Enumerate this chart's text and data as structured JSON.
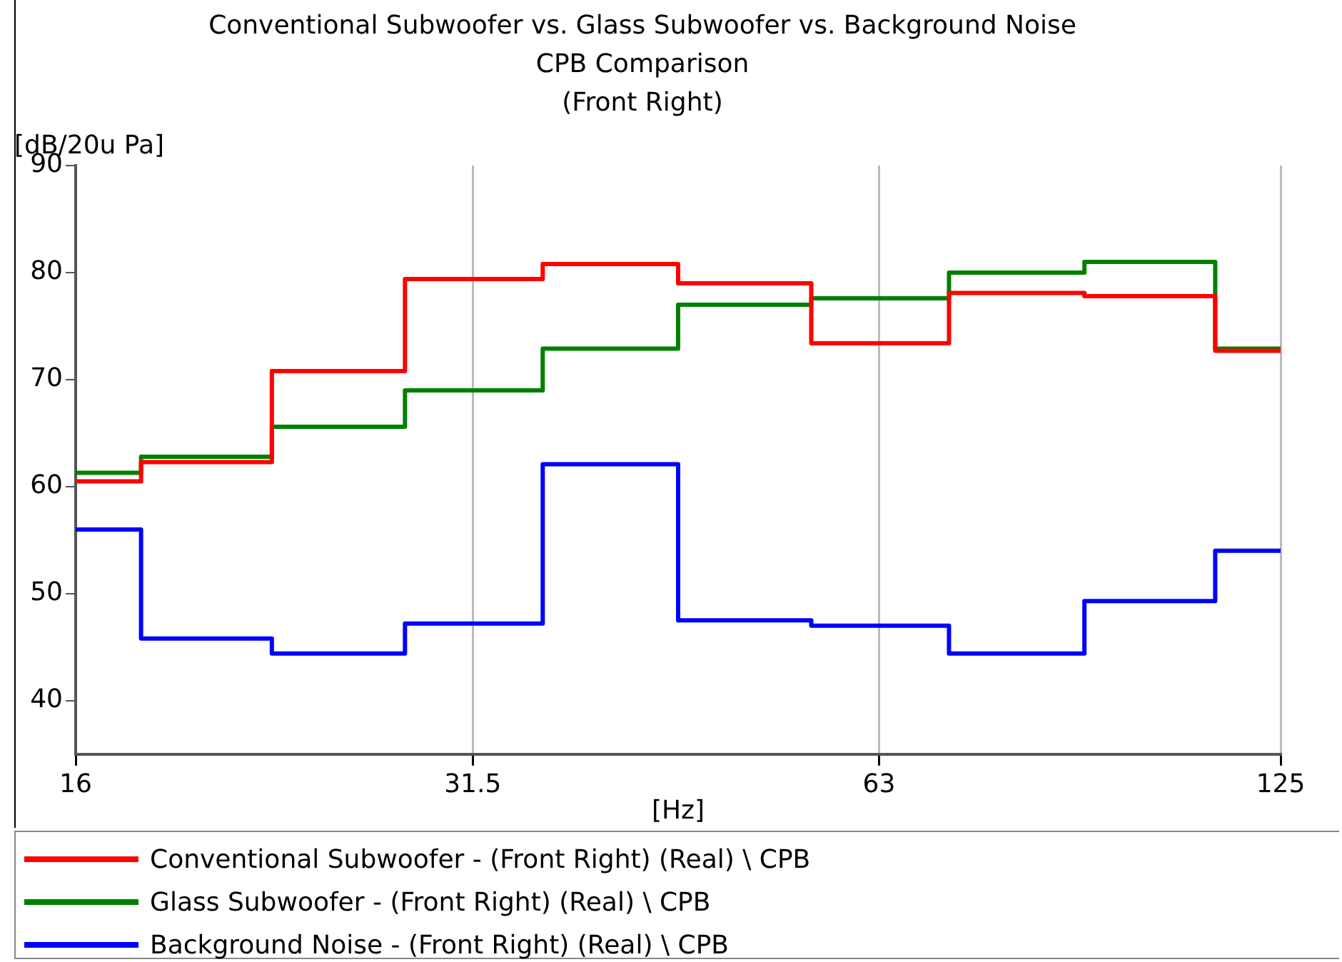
{
  "chart_data": {
    "type": "step",
    "title": "Conventional Subwoofer vs. Glass Subwoofer vs. Background Noise",
    "subtitle": "CPB Comparison\n(Front Right)",
    "xlabel": "[Hz]",
    "ylabel": "[dB/20u Pa]",
    "x": [
      16,
      20,
      25,
      31.5,
      40,
      50,
      63,
      80,
      100,
      125
    ],
    "series": [
      {
        "name": "Conventional Subwoofer - (Front Right) (Real) \\ CPB",
        "color": "#ff0000",
        "values": [
          60.5,
          62.3,
          70.8,
          79.4,
          80.8,
          79.0,
          73.4,
          78.1,
          77.8,
          72.7
        ]
      },
      {
        "name": "Glass Subwoofer - (Front Right) (Real) \\ CPB",
        "color": "#008000",
        "values": [
          61.3,
          62.8,
          65.6,
          69.0,
          72.9,
          77.0,
          77.6,
          80.0,
          81.0,
          72.9
        ]
      },
      {
        "name": "Background Noise - (Front Right) (Real) \\ CPB",
        "color": "#0000ff",
        "values": [
          56.0,
          45.8,
          44.4,
          47.2,
          62.1,
          47.5,
          47.0,
          44.4,
          49.3,
          54.0
        ]
      }
    ],
    "log": "x",
    "xlim": [
      16,
      125
    ],
    "xticks": [
      16,
      31.5,
      63,
      125
    ],
    "ylim": [
      35,
      90
    ],
    "yticks": [
      40,
      50,
      60,
      70,
      80,
      90
    ],
    "grid": "x",
    "legend": "bottom",
    "marker": "none",
    "line_style": "solid"
  }
}
